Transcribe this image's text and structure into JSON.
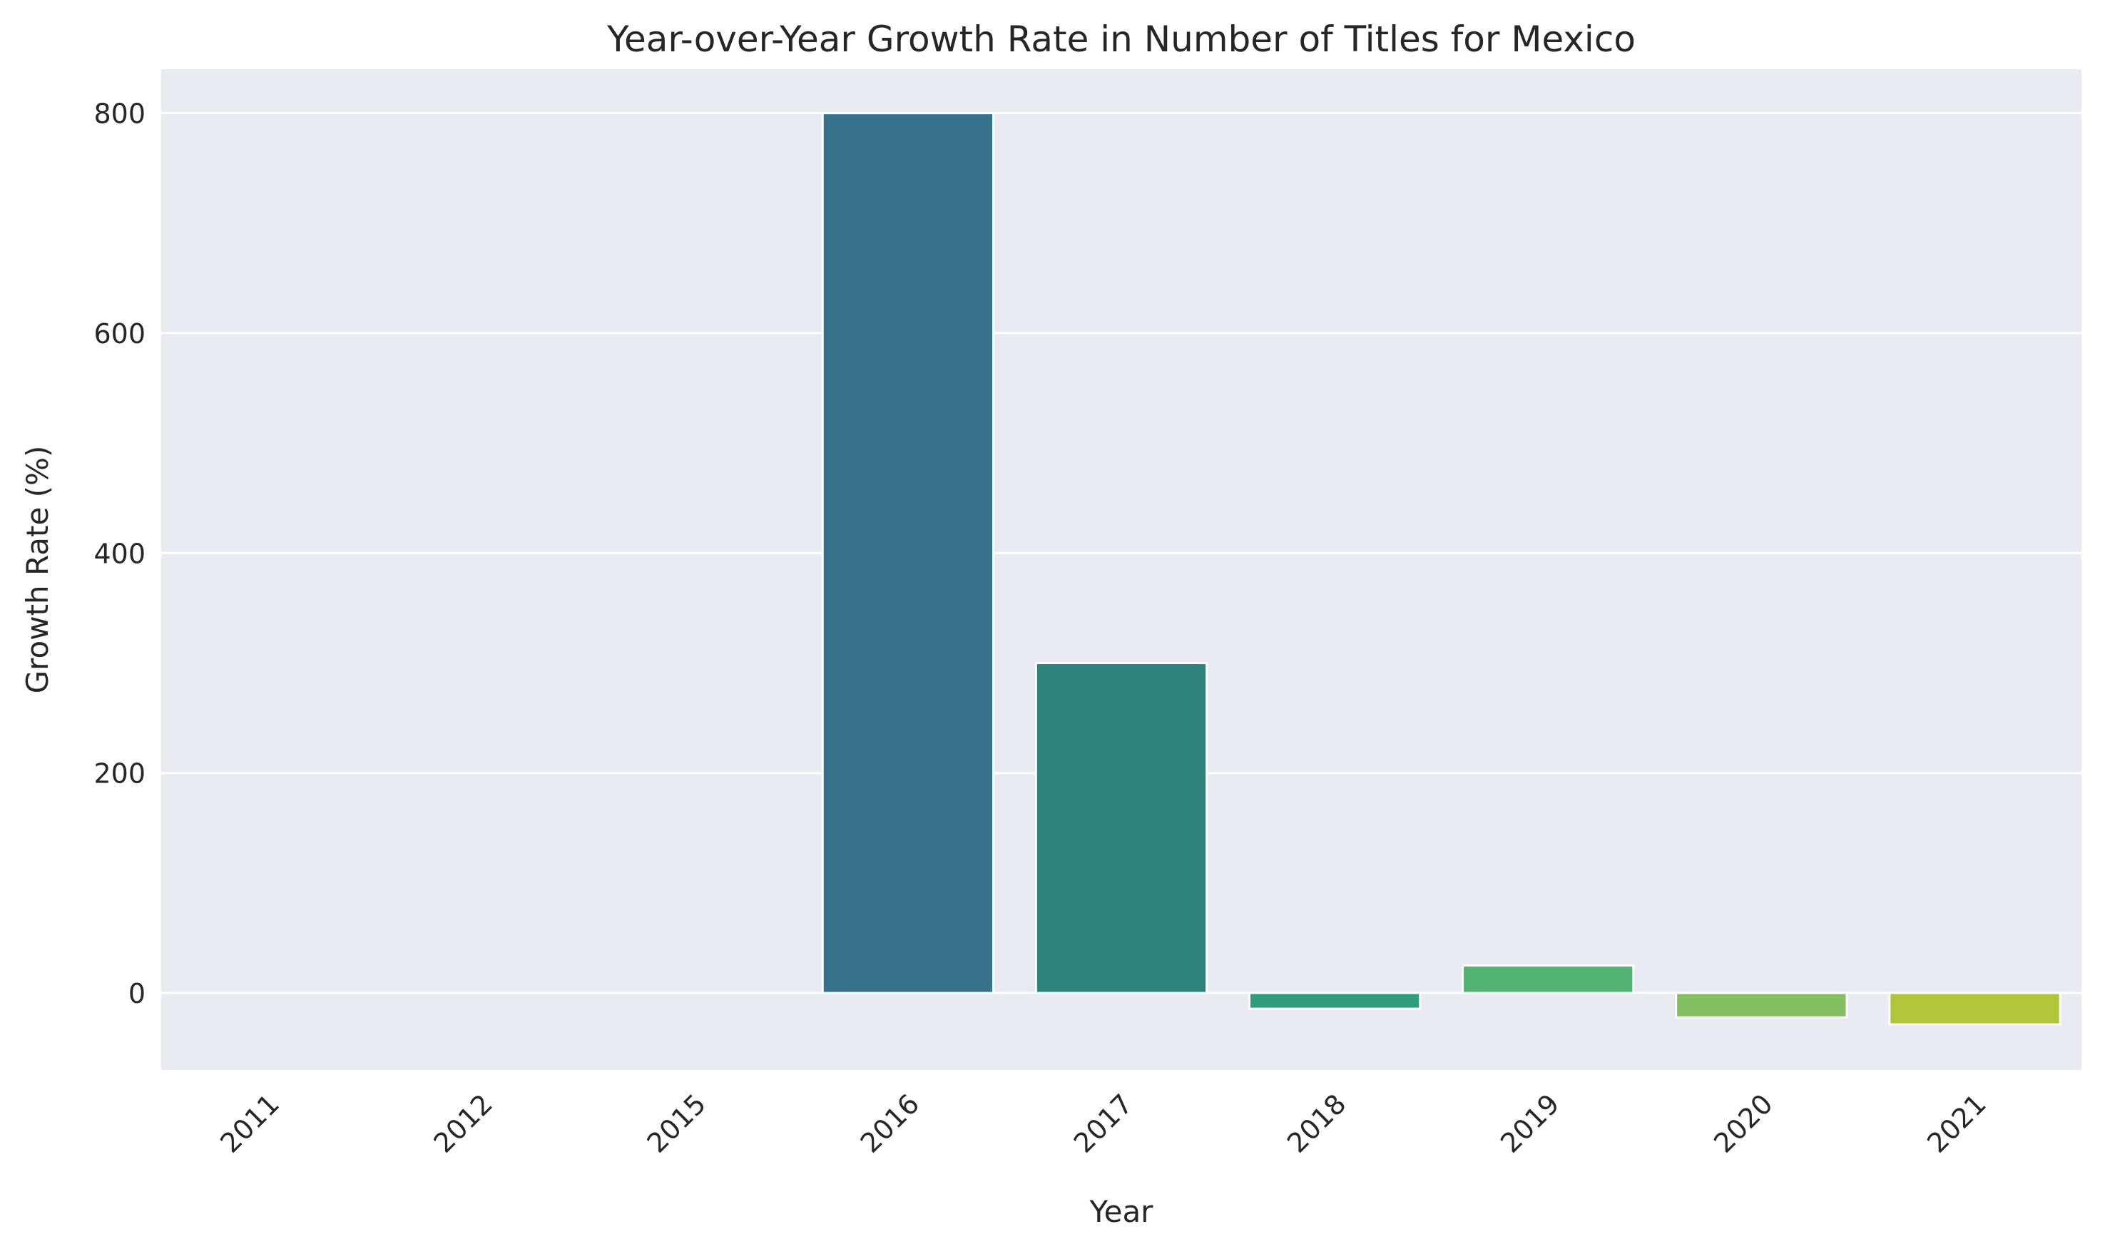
{
  "chart_data": {
    "type": "bar",
    "title": "Year-over-Year Growth Rate in Number of Titles for Mexico",
    "xlabel": "Year",
    "ylabel": "Growth Rate (%)",
    "categories": [
      "2011",
      "2012",
      "2015",
      "2016",
      "2017",
      "2018",
      "2019",
      "2020",
      "2021"
    ],
    "values": [
      null,
      0,
      0,
      800,
      300,
      -14.3,
      25,
      -22.2,
      -28.6
    ],
    "colors": [
      "#472f7d",
      "#3e4a89",
      "#31688e",
      "#35718a",
      "#2e847c",
      "#2f9d7a",
      "#52b374",
      "#83c061",
      "#b1c739"
    ],
    "ylim": [
      -70,
      840
    ],
    "yticks": [
      0,
      200,
      400,
      600,
      800
    ],
    "ytick_labels": [
      "0",
      "200",
      "400",
      "600",
      "800"
    ],
    "grid": true,
    "xtick_rotation_deg": 45
  }
}
